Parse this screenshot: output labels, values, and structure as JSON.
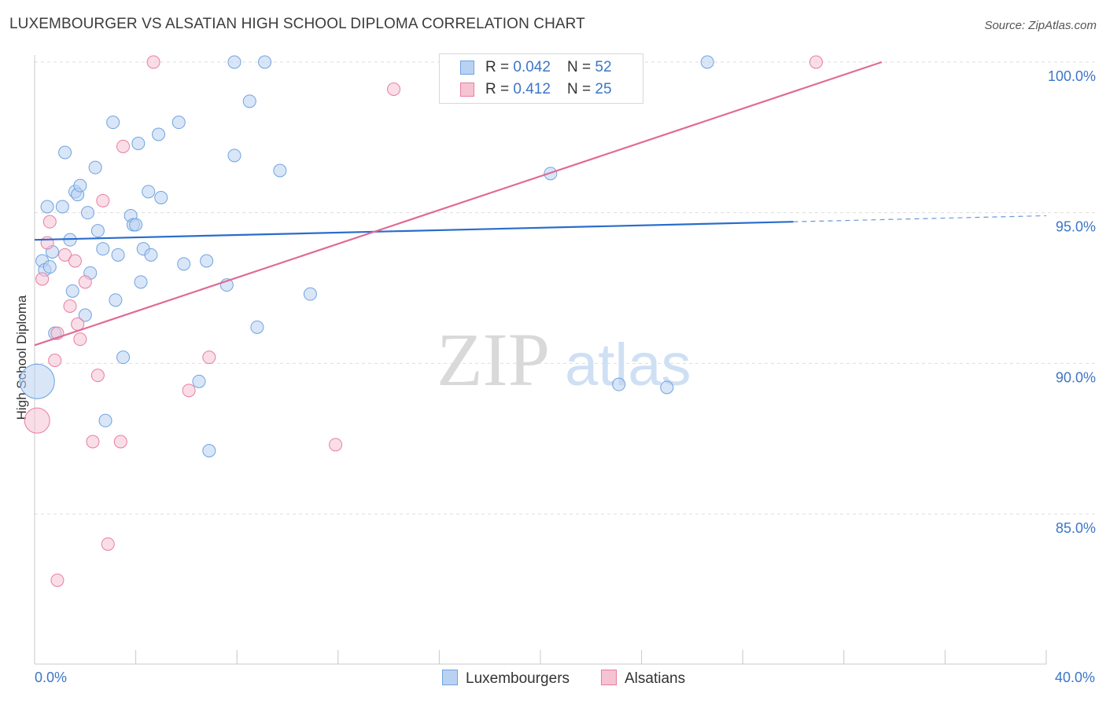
{
  "title": "LUXEMBOURGER VS ALSATIAN HIGH SCHOOL DIPLOMA CORRELATION CHART",
  "source": "Source: ZipAtlas.com",
  "watermark": {
    "zip": "ZIP",
    "atlas": "atlas"
  },
  "chart_data": {
    "type": "scatter",
    "ylabel": "High School Diploma",
    "xlim": [
      0,
      40
    ],
    "ylim": [
      80.5,
      100.5
    ],
    "x_tick_labels": {
      "min": "0.0%",
      "max": "40.0%"
    },
    "y_ticks": [
      {
        "value": 100,
        "label": "100.0%"
      },
      {
        "value": 95,
        "label": "95.0%"
      },
      {
        "value": 90,
        "label": "90.0%"
      },
      {
        "value": 85,
        "label": "85.0%"
      }
    ],
    "legend": [
      {
        "name": "Luxembourgers",
        "r_label": "R = ",
        "r": "0.042",
        "n_label": "N = ",
        "n": "52",
        "color": "#6fa3e0",
        "fill": "#b9d2f2"
      },
      {
        "name": "Alsatians",
        "r_label": "R = ",
        "r": "0.412",
        "n_label": "N = ",
        "n": "25",
        "color": "#e87da0",
        "fill": "#f6c3d3"
      }
    ],
    "series": [
      {
        "name": "Luxembourgers",
        "color": "#6fa3e0",
        "trend": {
          "x0": 0,
          "y0": 94.1,
          "x1": 30.0,
          "y1": 94.7,
          "dash_to_x": 40,
          "dash_to_y": 94.9,
          "color": "#2a6ccc"
        },
        "points": [
          [
            0.1,
            89.4
          ],
          [
            0.3,
            93.4
          ],
          [
            0.4,
            93.1
          ],
          [
            0.5,
            95.2
          ],
          [
            0.6,
            93.2
          ],
          [
            0.7,
            93.7
          ],
          [
            0.8,
            91.0
          ],
          [
            1.1,
            95.2
          ],
          [
            1.2,
            97.0
          ],
          [
            1.4,
            94.1
          ],
          [
            1.5,
            92.4
          ],
          [
            1.6,
            95.7
          ],
          [
            1.7,
            95.6
          ],
          [
            1.8,
            95.9
          ],
          [
            2.0,
            91.6
          ],
          [
            2.1,
            95.0
          ],
          [
            2.2,
            93.0
          ],
          [
            2.4,
            96.5
          ],
          [
            2.5,
            94.4
          ],
          [
            2.7,
            93.8
          ],
          [
            2.8,
            88.1
          ],
          [
            3.1,
            98.0
          ],
          [
            3.2,
            92.1
          ],
          [
            3.3,
            93.6
          ],
          [
            3.5,
            90.2
          ],
          [
            3.8,
            94.9
          ],
          [
            3.9,
            94.6
          ],
          [
            4.0,
            94.6
          ],
          [
            4.1,
            97.3
          ],
          [
            4.2,
            92.7
          ],
          [
            4.3,
            93.8
          ],
          [
            4.5,
            95.7
          ],
          [
            4.6,
            93.6
          ],
          [
            4.9,
            97.6
          ],
          [
            5.0,
            95.5
          ],
          [
            5.7,
            98.0
          ],
          [
            5.9,
            93.3
          ],
          [
            6.5,
            89.4
          ],
          [
            6.8,
            93.4
          ],
          [
            6.9,
            87.1
          ],
          [
            7.6,
            92.6
          ],
          [
            7.9,
            100.0
          ],
          [
            7.9,
            96.9
          ],
          [
            8.5,
            98.7
          ],
          [
            8.8,
            91.2
          ],
          [
            9.1,
            100.0
          ],
          [
            9.7,
            96.4
          ],
          [
            10.9,
            92.3
          ],
          [
            20.4,
            96.3
          ],
          [
            23.1,
            89.3
          ],
          [
            25.0,
            89.2
          ],
          [
            26.6,
            100.0
          ]
        ],
        "sizes": [
          22
        ]
      },
      {
        "name": "Alsatians",
        "color": "#e87da0",
        "trend": {
          "x0": 0,
          "y0": 90.6,
          "x1": 33.5,
          "y1": 100.0,
          "color": "#e06b95"
        },
        "points": [
          [
            0.1,
            88.1
          ],
          [
            0.3,
            92.8
          ],
          [
            0.5,
            94.0
          ],
          [
            0.6,
            94.7
          ],
          [
            0.8,
            90.1
          ],
          [
            0.9,
            91.0
          ],
          [
            0.9,
            82.8
          ],
          [
            1.2,
            93.6
          ],
          [
            1.4,
            91.9
          ],
          [
            1.6,
            93.4
          ],
          [
            1.7,
            91.3
          ],
          [
            1.8,
            90.8
          ],
          [
            2.0,
            92.7
          ],
          [
            2.3,
            87.4
          ],
          [
            2.5,
            89.6
          ],
          [
            2.7,
            95.4
          ],
          [
            2.9,
            84.0
          ],
          [
            3.4,
            87.4
          ],
          [
            3.5,
            97.2
          ],
          [
            4.7,
            100.0
          ],
          [
            6.1,
            89.1
          ],
          [
            6.9,
            90.2
          ],
          [
            11.9,
            87.3
          ],
          [
            14.2,
            99.1
          ],
          [
            30.9,
            100.0
          ]
        ]
      }
    ]
  }
}
